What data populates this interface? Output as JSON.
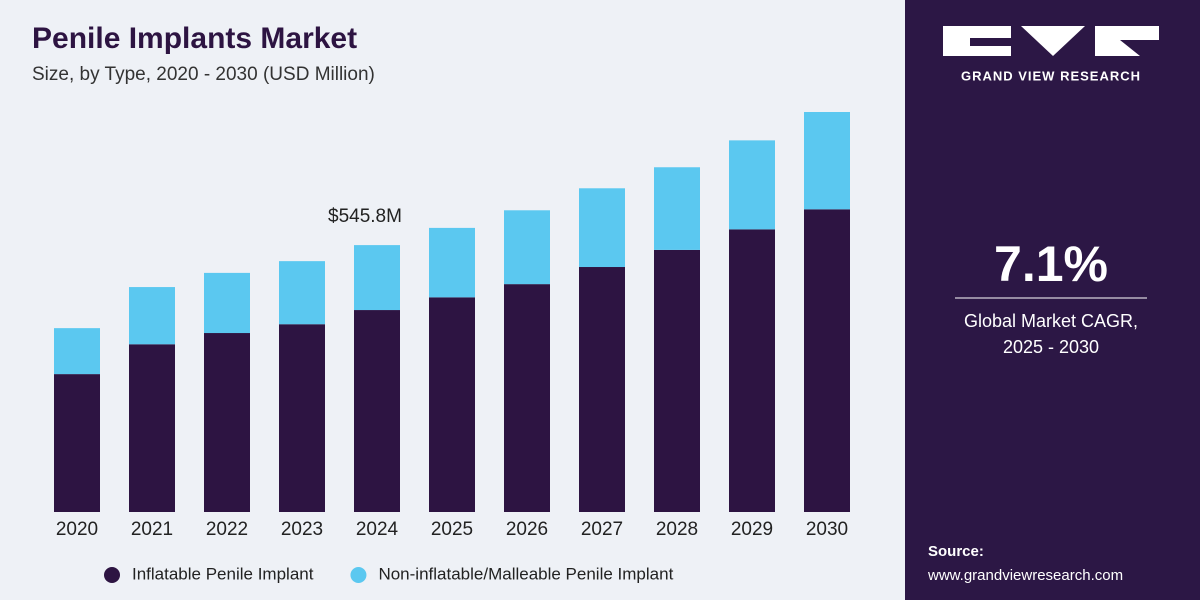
{
  "chart_data": {
    "type": "stacked_bar",
    "title": "Penile Implants Market",
    "subtitle": "Size, by Type, 2020 - 2030 (USD Million)",
    "categories": [
      "2020",
      "2021",
      "2022",
      "2023",
      "2024",
      "2025",
      "2026",
      "2027",
      "2028",
      "2029",
      "2030"
    ],
    "series": [
      {
        "name": "Inflatable Penile Implant",
        "color": "#2d1442",
        "values": [
          282,
          343,
          366,
          384,
          413,
          439,
          466,
          501,
          536,
          578,
          619
        ]
      },
      {
        "name": "Non-inflatable/Malleable Penile Implant",
        "color": "#5bc8f0",
        "values": [
          94,
          117,
          123,
          129,
          132.8,
          142,
          151,
          161,
          169,
          182,
          199
        ]
      }
    ],
    "annotation": {
      "category": "2024",
      "value": 545.8,
      "label": "$545.8M"
    },
    "legend": "bottom"
  },
  "panel": {
    "brand": "GRAND VIEW RESEARCH",
    "cagr": "7.1%",
    "cagr_label": "Global Market CAGR,",
    "cagr_period": "2025 - 2030",
    "source_title": "Source:",
    "source_url": "www.grandviewresearch.com"
  }
}
